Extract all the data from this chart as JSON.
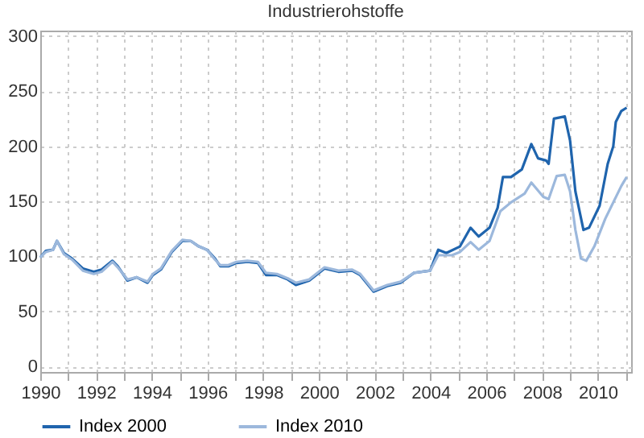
{
  "chart_data": {
    "type": "line",
    "title": "Industrierohstoffe",
    "xlim": [
      1990,
      2011.2
    ],
    "ylim": [
      -5,
      305
    ],
    "xticks": [
      1990,
      {
        "value": 1991,
        "label": null
      },
      1992,
      {
        "value": 1993,
        "label": null
      },
      1994,
      {
        "value": 1995,
        "label": null
      },
      1996,
      {
        "value": 1997,
        "label": null
      },
      1998,
      {
        "value": 1999,
        "label": null
      },
      2000,
      {
        "value": 2001,
        "label": null
      },
      2002,
      {
        "value": 2003,
        "label": null
      },
      2004,
      {
        "value": 2005,
        "label": null
      },
      2006,
      {
        "value": 2007,
        "label": null
      },
      2008,
      {
        "value": 2009,
        "label": null
      },
      2010,
      {
        "value": 2011,
        "label": null
      }
    ],
    "yticks": [
      0,
      50,
      100,
      150,
      200,
      250,
      300
    ],
    "grid": true,
    "legend": "bottom",
    "line_style": "solid",
    "marker": "none",
    "series": [
      {
        "name": "Index 2000",
        "color": "#1f64ad",
        "x": [
          1990.0,
          1990.2,
          1990.46,
          1990.6,
          1990.85,
          1991.14,
          1991.53,
          1991.92,
          1992.2,
          1992.59,
          1992.78,
          1993.13,
          1993.46,
          1993.85,
          1994.04,
          1994.33,
          1994.72,
          1995.1,
          1995.4,
          1995.69,
          1995.98,
          1996.27,
          1996.46,
          1996.75,
          1997.04,
          1997.43,
          1997.81,
          1998.1,
          1998.49,
          1998.88,
          1999.17,
          1999.65,
          2000.2,
          2000.7,
          2001.19,
          2001.48,
          2001.96,
          2002.45,
          2002.93,
          2003.41,
          2003.99,
          2004.28,
          2004.57,
          2005.06,
          2005.44,
          2005.73,
          2006.12,
          2006.41,
          2006.6,
          2006.89,
          2007.28,
          2007.62,
          2007.86,
          2008.15,
          2008.24,
          2008.43,
          2008.82,
          2009.01,
          2009.2,
          2009.49,
          2009.69,
          2010.07,
          2010.36,
          2010.56,
          2010.65,
          2010.85,
          2011.04
        ],
        "values": [
          99,
          105,
          106,
          114,
          103,
          98,
          89,
          86,
          88,
          96,
          91,
          78,
          81,
          76,
          83,
          88,
          104,
          114,
          114,
          109,
          106,
          98,
          91,
          91,
          94,
          95,
          94,
          83,
          83,
          79,
          74,
          78,
          89,
          86,
          87,
          83,
          68,
          73,
          76,
          85,
          87,
          106,
          103,
          109,
          126,
          118,
          126,
          144,
          172,
          172,
          179,
          202,
          189,
          187,
          184,
          225,
          227,
          205,
          159,
          124,
          126,
          146,
          184,
          200,
          222,
          232,
          235
        ]
      },
      {
        "name": "Index 2010",
        "color": "#9cb8dc",
        "x": [
          1990.0,
          1990.2,
          1990.46,
          1990.6,
          1990.85,
          1991.14,
          1991.53,
          1991.92,
          1992.2,
          1992.59,
          1992.78,
          1993.13,
          1993.46,
          1993.85,
          1994.04,
          1994.33,
          1994.72,
          1995.1,
          1995.4,
          1995.69,
          1995.98,
          1996.27,
          1996.46,
          1996.75,
          1997.04,
          1997.43,
          1997.81,
          1998.1,
          1998.49,
          1998.88,
          1999.17,
          1999.65,
          2000.2,
          2000.7,
          2001.19,
          2001.48,
          2001.96,
          2002.45,
          2002.93,
          2003.41,
          2003.99,
          2004.28,
          2004.77,
          2005.06,
          2005.44,
          2005.73,
          2006.12,
          2006.51,
          2006.89,
          2007.38,
          2007.62,
          2008.05,
          2008.24,
          2008.53,
          2008.82,
          2009.01,
          2009.2,
          2009.4,
          2009.59,
          2009.88,
          2010.27,
          2010.56,
          2010.85,
          2011.04
        ],
        "values": [
          99,
          104,
          106,
          114,
          102,
          97,
          87,
          84,
          86,
          95,
          90,
          79,
          81,
          77,
          84,
          89,
          105,
          115,
          114,
          109,
          106,
          97,
          92,
          92,
          95,
          96,
          95,
          85,
          84,
          80,
          76,
          79,
          90,
          87,
          88,
          84,
          69,
          74,
          77,
          85,
          87,
          101,
          101,
          104,
          113,
          106,
          114,
          141,
          149,
          157,
          167,
          154,
          152,
          173,
          174,
          159,
          124,
          98,
          96,
          109,
          134,
          149,
          164,
          172
        ]
      }
    ]
  }
}
